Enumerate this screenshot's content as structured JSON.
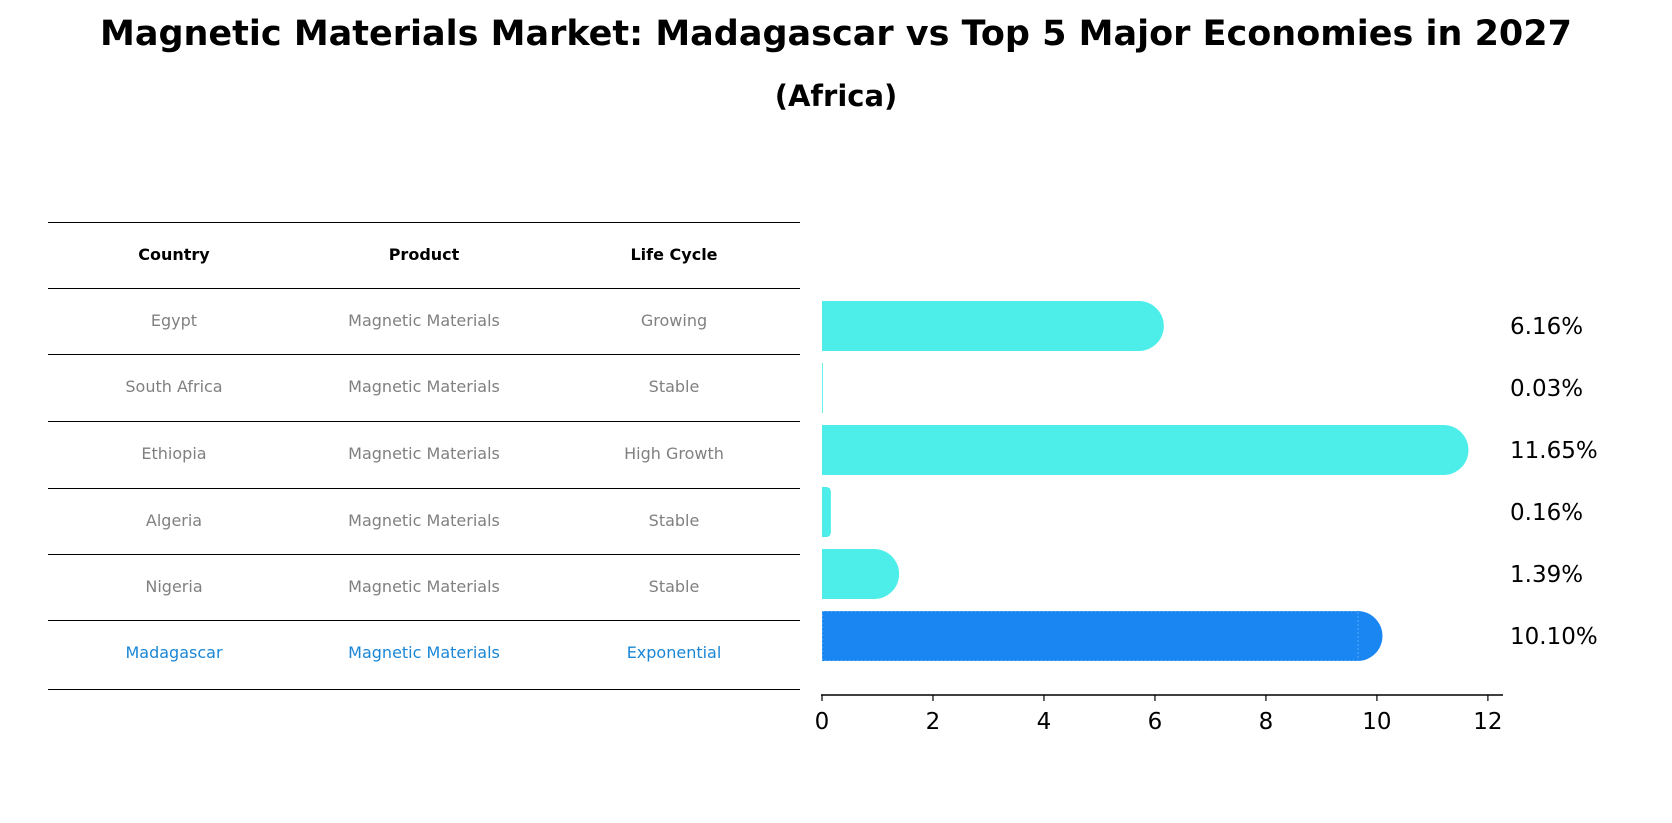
{
  "title": "Magnetic Materials Market: Madagascar vs Top 5 Major Economies in 2027",
  "subtitle": "(Africa)",
  "table": {
    "headers": [
      "Country",
      "Product",
      "Life Cycle"
    ],
    "rows": [
      {
        "country": "Egypt",
        "product": "Magnetic Materials",
        "life_cycle": "Growing"
      },
      {
        "country": "South Africa",
        "product": "Magnetic Materials",
        "life_cycle": "Stable"
      },
      {
        "country": "Ethiopia",
        "product": "Magnetic Materials",
        "life_cycle": "High Growth"
      },
      {
        "country": "Algeria",
        "product": "Magnetic Materials",
        "life_cycle": "Stable"
      },
      {
        "country": "Nigeria",
        "product": "Magnetic Materials",
        "life_cycle": "Stable"
      },
      {
        "country": "Madagascar",
        "product": "Magnetic Materials",
        "life_cycle": "Exponential"
      }
    ]
  },
  "chart_data": {
    "type": "bar",
    "orientation": "horizontal",
    "title": "Magnetic Materials Market: Madagascar vs Top 5 Major Economies in 2027",
    "subtitle": "(Africa)",
    "categories": [
      "Egypt",
      "South Africa",
      "Ethiopia",
      "Algeria",
      "Nigeria",
      "Madagascar"
    ],
    "values": [
      6.16,
      0.03,
      11.65,
      0.16,
      1.39,
      10.1
    ],
    "value_labels": [
      "6.16%",
      "0.03%",
      "11.65%",
      "0.16%",
      "1.39%",
      "10.10%"
    ],
    "highlight": "Madagascar",
    "xlim": [
      0,
      12.2
    ],
    "xticks": [
      0,
      2,
      4,
      6,
      8,
      10,
      12
    ],
    "xtick_labels": [
      "0",
      "2",
      "4",
      "6",
      "8",
      "10",
      "12"
    ],
    "xlabel": "",
    "ylabel": "",
    "grid": false,
    "colors": {
      "bar": "#4deeea",
      "highlight": "#1a86f2",
      "label": "#000000",
      "highlight_text": "#1a86d6",
      "muted_text": "#808080"
    }
  }
}
